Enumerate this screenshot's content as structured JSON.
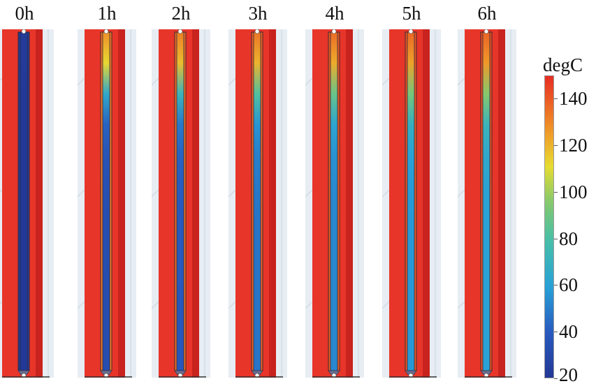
{
  "colors": {
    "hot": "#e8352a",
    "hot_dark": "#c8231e",
    "frame_bg": "#e7edf3",
    "frame_line": "#c9d3dc"
  },
  "panels": [
    {
      "label": "0h",
      "temps": [
        22,
        22,
        21,
        21,
        21,
        21,
        21,
        21,
        21,
        21,
        21,
        21
      ],
      "cap_temp": 22
    },
    {
      "label": "1h",
      "temps": [
        128,
        112,
        65,
        42,
        36,
        34,
        33,
        33,
        32,
        32,
        32,
        32
      ],
      "cap_temp": 134
    },
    {
      "label": "2h",
      "temps": [
        132,
        118,
        72,
        48,
        42,
        40,
        39,
        39,
        39,
        38,
        38,
        38
      ],
      "cap_temp": 136
    },
    {
      "label": "3h",
      "temps": [
        134,
        120,
        82,
        56,
        50,
        48,
        47,
        47,
        47,
        47,
        47,
        47
      ],
      "cap_temp": 138
    },
    {
      "label": "4h",
      "temps": [
        136,
        122,
        88,
        62,
        55,
        53,
        52,
        52,
        52,
        52,
        52,
        52
      ],
      "cap_temp": 140
    },
    {
      "label": "5h",
      "temps": [
        137,
        124,
        92,
        68,
        60,
        58,
        57,
        57,
        57,
        57,
        57,
        57
      ],
      "cap_temp": 141
    },
    {
      "label": "6h",
      "temps": [
        138,
        126,
        96,
        72,
        64,
        61,
        60,
        60,
        60,
        60,
        60,
        60
      ],
      "cap_temp": 142
    }
  ],
  "colorbar": {
    "title": "degC",
    "min": 20,
    "max": 150,
    "ticks": [
      "140",
      "120",
      "100",
      "80",
      "60",
      "40",
      "20"
    ],
    "tick_values": [
      140,
      120,
      100,
      80,
      60,
      40,
      20
    ]
  }
}
